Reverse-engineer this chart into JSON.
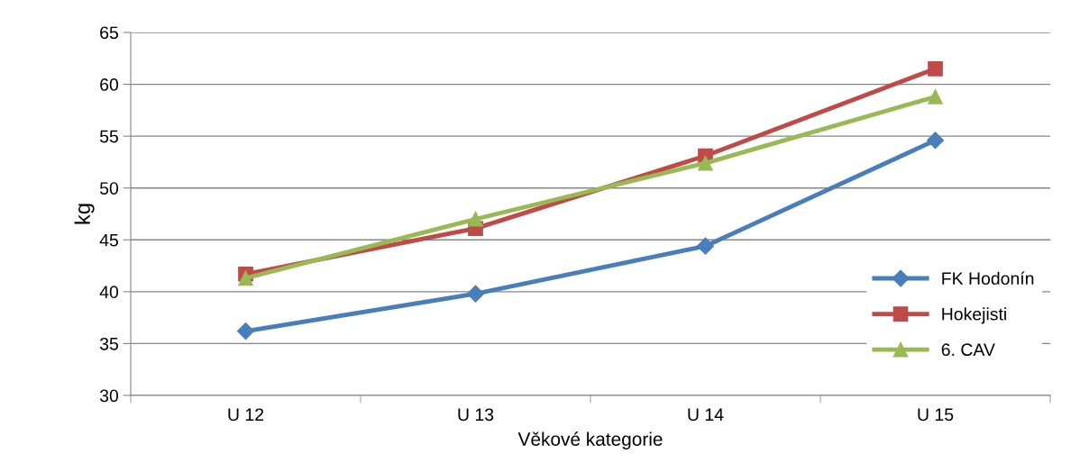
{
  "chart_data": {
    "type": "line",
    "xlabel": "Věkové kategorie",
    "ylabel": "kg",
    "categories": [
      "U 12",
      "U 13",
      "U 14",
      "U 15"
    ],
    "series": [
      {
        "name": "FK Hodonín",
        "color": "#4a7ebb",
        "marker": "diamond",
        "values": [
          36.2,
          39.8,
          44.4,
          54.6
        ]
      },
      {
        "name": "Hokejisti",
        "color": "#be4b48",
        "marker": "square",
        "values": [
          41.7,
          46.1,
          53.1,
          61.5
        ]
      },
      {
        "name": "6. CAV",
        "color": "#98b954",
        "marker": "triangle",
        "values": [
          41.3,
          47.0,
          52.4,
          58.8
        ]
      }
    ],
    "ylim": [
      30,
      65
    ],
    "yticks": [
      30,
      35,
      40,
      45,
      50,
      55,
      60,
      65
    ],
    "grid": "y",
    "legend": "right",
    "line_style": "solid"
  }
}
